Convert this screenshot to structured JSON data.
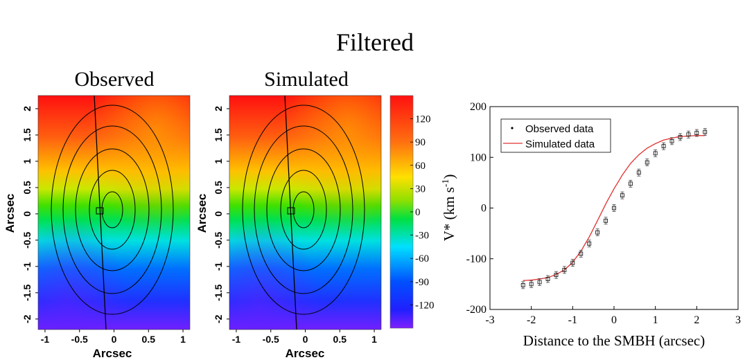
{
  "title": "Filtered",
  "colors": {
    "model_line": "#e03030",
    "contour": "#000000",
    "colormap": [
      "#6a20ff",
      "#2030ff",
      "#00d0ff",
      "#00e040",
      "#b0e000",
      "#ffe000",
      "#ff8000",
      "#ff1010"
    ]
  },
  "chart_data": [
    {
      "type": "heatmap",
      "title": "Observed",
      "xlabel": "Arcsec",
      "ylabel": "Arcsec",
      "xlim": [
        -1.1,
        1.1
      ],
      "ylim": [
        -2.2,
        2.25
      ],
      "xticks": [
        "-1",
        "-0.5",
        "0",
        "0.5",
        "1"
      ],
      "yticks": [
        "-2",
        "-1.5",
        "-1",
        "-0.5",
        "0",
        "0.5",
        "1",
        "1.5",
        "2"
      ],
      "contour_levels": 5
    },
    {
      "type": "heatmap",
      "title": "Simulated",
      "xlabel": "Arcsec",
      "ylabel": "Arcsec",
      "xlim": [
        -1.1,
        1.1
      ],
      "ylim": [
        -2.2,
        2.25
      ],
      "xticks": [
        "-1",
        "-0.5",
        "0",
        "0.5",
        "1"
      ],
      "yticks": [
        "-2",
        "-1.5",
        "-1",
        "-0.5",
        "0",
        "0.5",
        "1",
        "1.5",
        "2"
      ],
      "contour_levels": 5
    },
    {
      "type": "colorbar",
      "range": [
        -150,
        150
      ],
      "ticks": [
        "120",
        "90",
        "60",
        "30",
        "0",
        "-30",
        "-60",
        "-90",
        "-120"
      ]
    },
    {
      "type": "scatter",
      "xlabel": "Distance to the SMBH (arcsec)",
      "ylabel": "V* (km s-1)",
      "xlim": [
        -3,
        3
      ],
      "ylim": [
        -200,
        200
      ],
      "xticks": [
        "-3",
        "-2",
        "-1",
        "0",
        "1",
        "2",
        "3"
      ],
      "yticks": [
        "200",
        "100",
        "0",
        "-100",
        "-200"
      ],
      "legend": "top-left",
      "series": [
        {
          "name": "Observed data",
          "x": [
            -2.2,
            -2.0,
            -1.8,
            -1.6,
            -1.4,
            -1.2,
            -1.0,
            -0.8,
            -0.6,
            -0.4,
            -0.2,
            0.0,
            0.2,
            0.4,
            0.6,
            0.8,
            1.0,
            1.2,
            1.4,
            1.6,
            1.8,
            2.0,
            2.2
          ],
          "y": [
            -152,
            -150,
            -146,
            -140,
            -132,
            -122,
            -108,
            -90,
            -70,
            -48,
            -25,
            0,
            25,
            48,
            70,
            90,
            108,
            122,
            132,
            140,
            145,
            148,
            150
          ]
        },
        {
          "name": "Simulated data",
          "x": [
            -2.2,
            -2.0,
            -1.8,
            -1.6,
            -1.4,
            -1.2,
            -1.0,
            -0.8,
            -0.6,
            -0.4,
            -0.2,
            0.0,
            0.2,
            0.4,
            0.6,
            0.8,
            1.0,
            1.2,
            1.4,
            1.6,
            1.8,
            2.0,
            2.2
          ],
          "y": [
            -143,
            -142,
            -140,
            -137,
            -131,
            -122,
            -107,
            -85,
            -57,
            -25,
            8,
            38,
            65,
            88,
            105,
            118,
            127,
            134,
            138,
            141,
            142,
            143,
            143
          ]
        }
      ]
    }
  ]
}
